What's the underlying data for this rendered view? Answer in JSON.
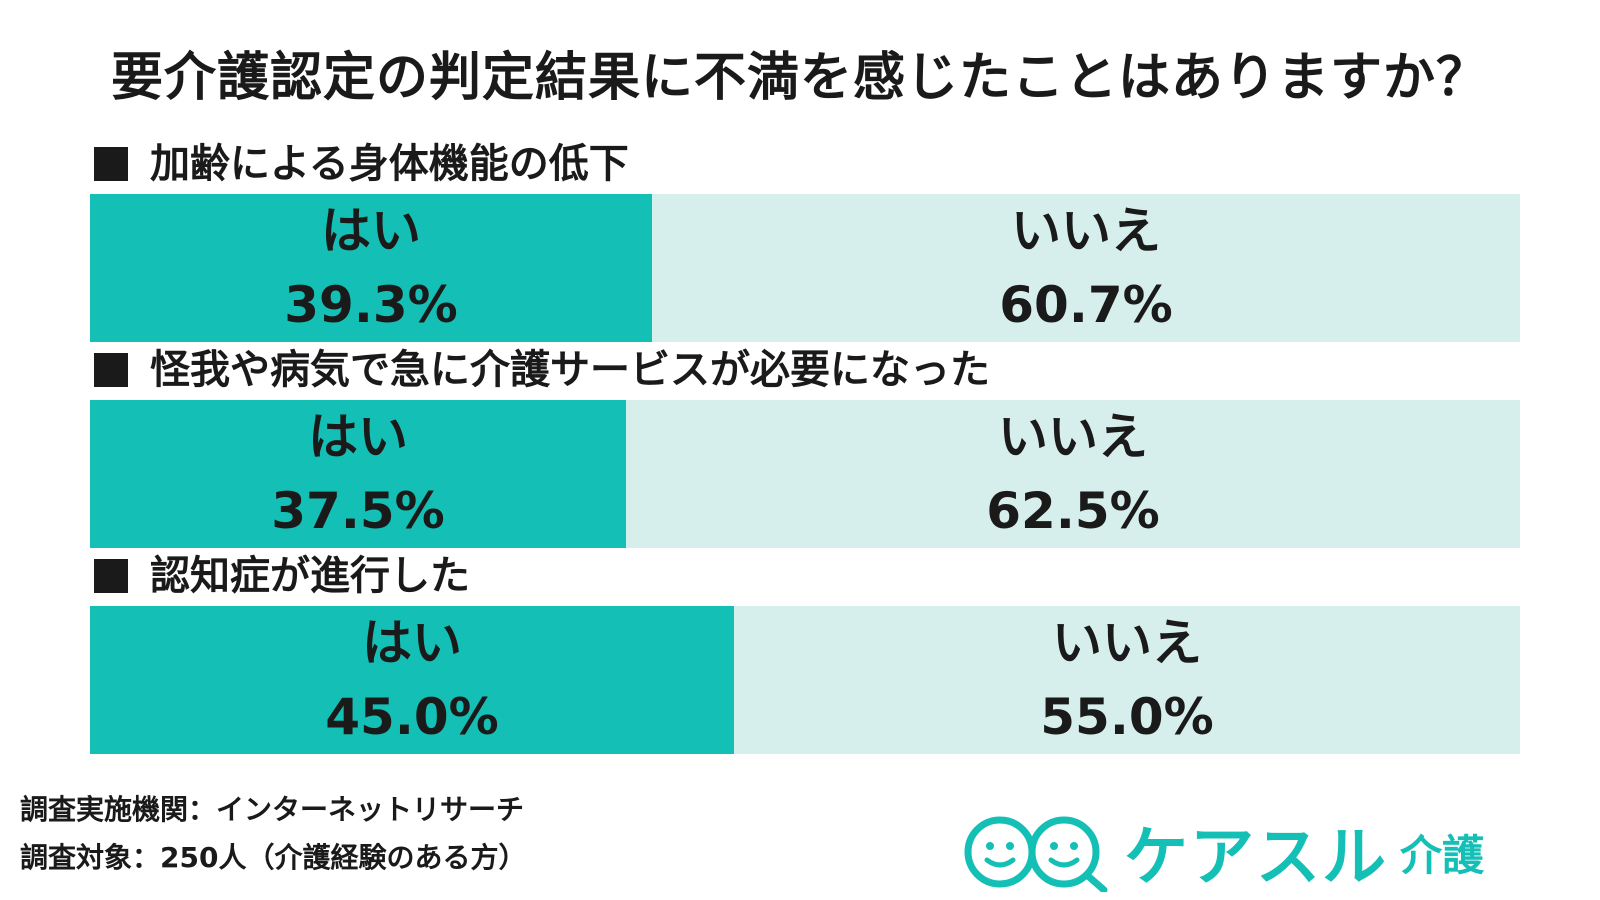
{
  "title": "要介護認定の判定結果に不満を感じたことはありますか？",
  "chart_data": {
    "type": "bar",
    "stacked": true,
    "orientation": "horizontal",
    "categories": [
      "加齢による身体機能の低下",
      "怪我や病気で急に介護サービスが必要になった",
      "認知症が進行した"
    ],
    "series": [
      {
        "name": "はい",
        "values": [
          39.3,
          37.5,
          45.0
        ],
        "color": "#14bfb5"
      },
      {
        "name": "いいえ",
        "values": [
          60.7,
          62.5,
          55.0
        ],
        "color": "#d6eeec"
      }
    ],
    "value_labels_yes": [
      "39.3%",
      "37.5%",
      "45.0%"
    ],
    "value_labels_no": [
      "60.7%",
      "62.5%",
      "55.0%"
    ]
  },
  "footer": {
    "line1": "調査実施機関：インターネットリサーチ",
    "line2": "調査対象：250人（介護経験のある方）"
  },
  "logo": {
    "brand": "ケアスル",
    "sub": "介護",
    "icon": "smiley-faces-icon",
    "color": "#14bfb5"
  }
}
